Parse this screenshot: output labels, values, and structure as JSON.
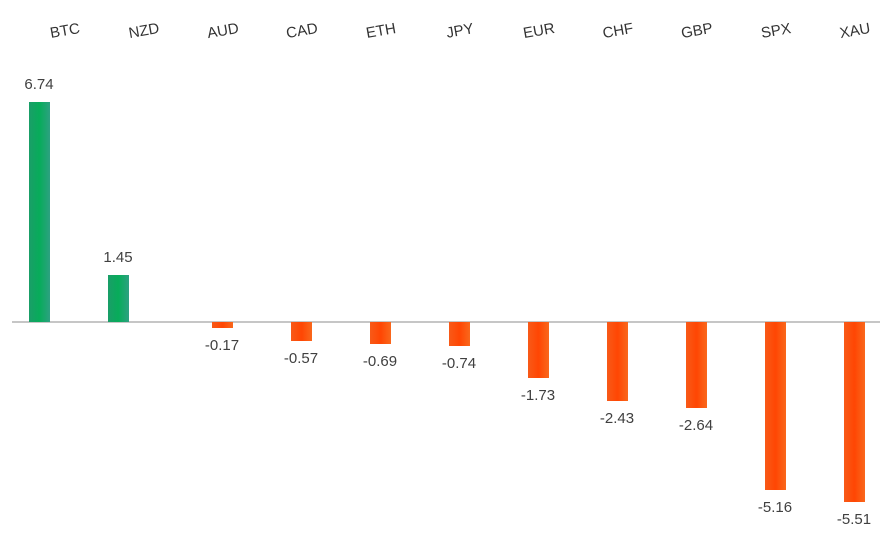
{
  "chart_data": {
    "type": "bar",
    "title": "",
    "xlabel": "",
    "ylabel": "",
    "categories": [
      "BTC",
      "NZD",
      "AUD",
      "CAD",
      "ETH",
      "JPY",
      "EUR",
      "CHF",
      "GBP",
      "SPX",
      "XAU"
    ],
    "values": [
      6.74,
      1.45,
      -0.17,
      -0.57,
      -0.69,
      -0.74,
      -1.73,
      -2.43,
      -2.64,
      -5.16,
      -5.51
    ],
    "value_labels": [
      "6.74",
      "1.45",
      "-0.17",
      "-0.57",
      "-0.69",
      "-0.74",
      "-1.73",
      "-2.43",
      "-2.64",
      "-5.16",
      "-5.51"
    ],
    "ylim": [
      -6,
      7
    ],
    "grid": false,
    "legend": false,
    "category_labels_position": "top",
    "category_labels_rotation_deg": -10,
    "colors": {
      "positive_bar": "#0aab5c",
      "negative_bar": "#fd4a07",
      "axis_line": "#c6c6c6",
      "category_text": "#333333",
      "value_text": "#404040",
      "background": "#ffffff"
    }
  }
}
